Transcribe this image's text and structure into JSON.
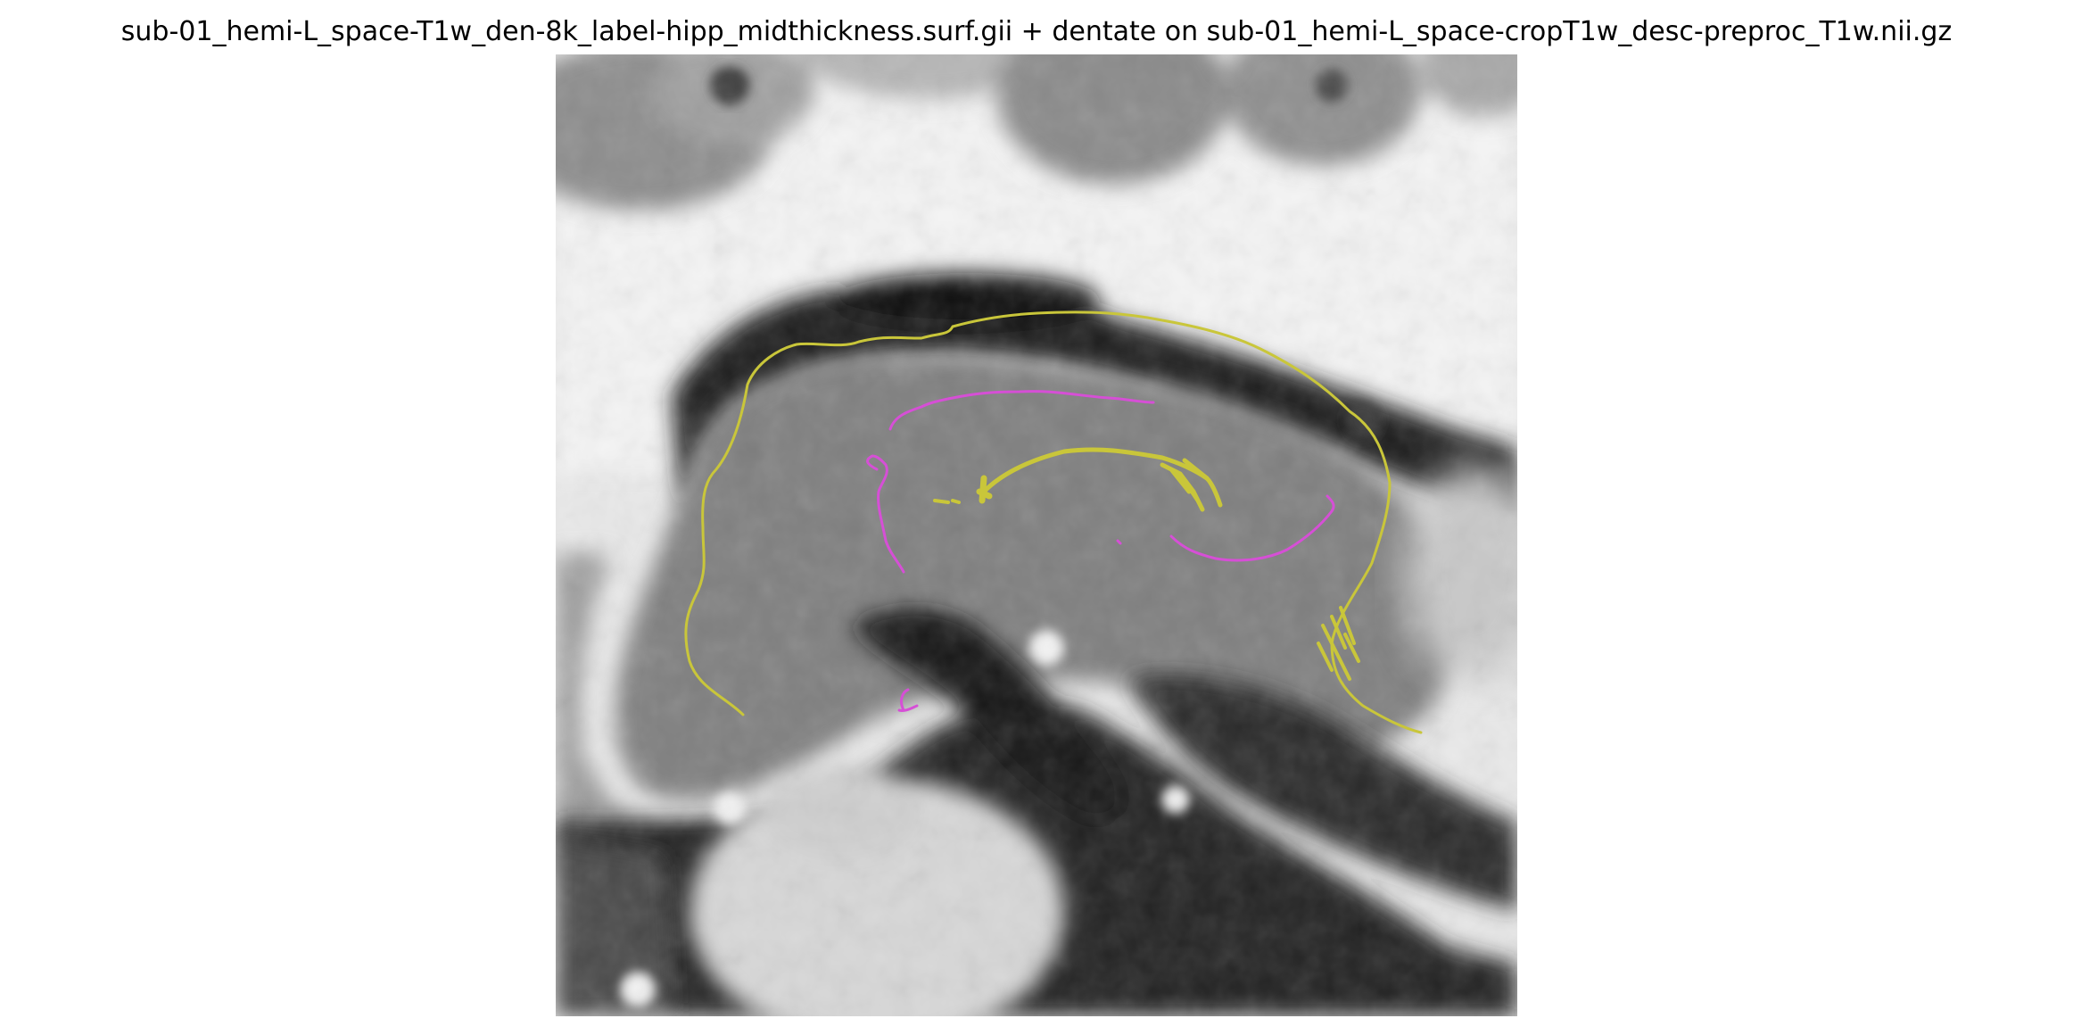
{
  "figure": {
    "title": "sub-01_hemi-L_space-T1w_den-8k_label-hipp_midthickness.surf.gii + dentate on sub-01_hemi-L_space-cropT1w_desc-preproc_T1w.nii.gz"
  },
  "overlay": {
    "colors": {
      "midthickness_surface": "#c9c63a",
      "dentate_surface": "#d64fd6",
      "background": "#ffffff"
    }
  }
}
